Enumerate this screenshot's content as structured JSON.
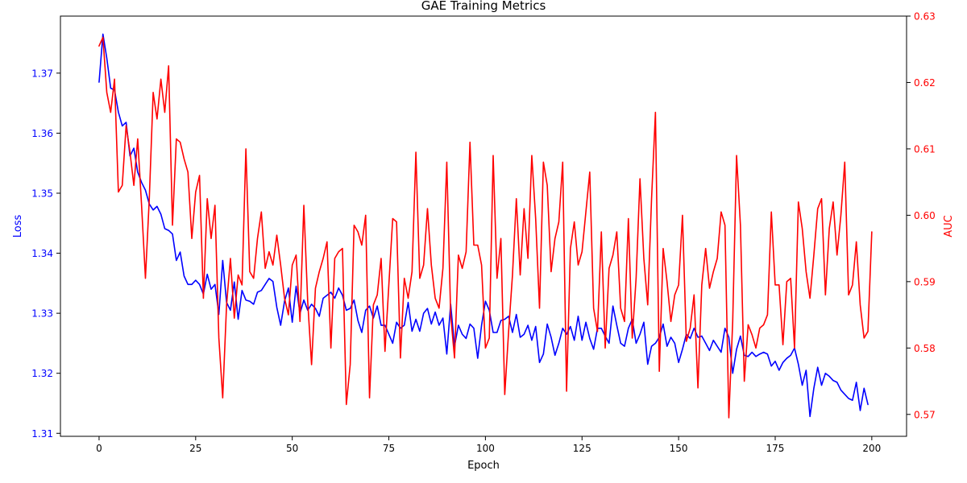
{
  "chart_data": {
    "type": "line",
    "title": "GAE Training Metrics",
    "xlabel": "Epoch",
    "ylabel_left": "Loss",
    "ylabel_right": "AUC",
    "xlim": [
      -10,
      209
    ],
    "ylim_left": [
      1.3095,
      1.3795
    ],
    "ylim_right": [
      0.5667,
      0.63
    ],
    "x_ticks": [
      0,
      25,
      50,
      75,
      100,
      125,
      150,
      175,
      200
    ],
    "y_left_ticks": [
      1.31,
      1.32,
      1.33,
      1.34,
      1.35,
      1.36,
      1.37
    ],
    "y_right_ticks": [
      0.57,
      0.58,
      0.59,
      0.6,
      0.61,
      0.62,
      0.63
    ],
    "grid": false,
    "colors": {
      "loss": "#0000ff",
      "auc": "#ff0000"
    },
    "series": [
      {
        "axis": "left",
        "color": "#0000ff",
        "values": [
          1.3685,
          1.3765,
          1.3725,
          1.3675,
          1.3672,
          1.3635,
          1.3612,
          1.3618,
          1.3562,
          1.3575,
          1.3535,
          1.3518,
          1.3505,
          1.3482,
          1.3472,
          1.3478,
          1.3465,
          1.3441,
          1.3438,
          1.3432,
          1.3388,
          1.3402,
          1.3362,
          1.3348,
          1.3348,
          1.3355,
          1.3348,
          1.3332,
          1.3365,
          1.334,
          1.3348,
          1.3298,
          1.3388,
          1.3318,
          1.3305,
          1.3352,
          1.329,
          1.3338,
          1.3322,
          1.332,
          1.3315,
          1.3335,
          1.3338,
          1.3348,
          1.3358,
          1.3353,
          1.331,
          1.328,
          1.332,
          1.3342,
          1.3285,
          1.3345,
          1.33,
          1.3322,
          1.3305,
          1.3315,
          1.3308,
          1.3295,
          1.3325,
          1.333,
          1.3335,
          1.3325,
          1.3342,
          1.333,
          1.3305,
          1.3308,
          1.3322,
          1.3288,
          1.3268,
          1.3305,
          1.3312,
          1.3292,
          1.3312,
          1.328,
          1.328,
          1.3265,
          1.325,
          1.3285,
          1.3275,
          1.328,
          1.3318,
          1.327,
          1.329,
          1.327,
          1.33,
          1.3308,
          1.3282,
          1.3302,
          1.328,
          1.3292,
          1.3232,
          1.3315,
          1.3245,
          1.328,
          1.3265,
          1.3258,
          1.3282,
          1.3275,
          1.3225,
          1.328,
          1.332,
          1.3305,
          1.3268,
          1.3268,
          1.3288,
          1.329,
          1.3295,
          1.3268,
          1.3298,
          1.326,
          1.3265,
          1.328,
          1.3255,
          1.3278,
          1.3218,
          1.3232,
          1.3282,
          1.326,
          1.323,
          1.325,
          1.3275,
          1.3265,
          1.3278,
          1.3255,
          1.3295,
          1.3255,
          1.3285,
          1.3258,
          1.324,
          1.3275,
          1.3275,
          1.3262,
          1.325,
          1.3312,
          1.328,
          1.325,
          1.3245,
          1.3275,
          1.329,
          1.325,
          1.3265,
          1.3285,
          1.3215,
          1.3245,
          1.325,
          1.326,
          1.3282,
          1.3245,
          1.326,
          1.325,
          1.3218,
          1.324,
          1.3265,
          1.3258,
          1.3275,
          1.326,
          1.3262,
          1.325,
          1.3238,
          1.3255,
          1.3245,
          1.3235,
          1.3275,
          1.326,
          1.32,
          1.324,
          1.3262,
          1.323,
          1.3228,
          1.3235,
          1.3228,
          1.3232,
          1.3235,
          1.3232,
          1.3212,
          1.322,
          1.3205,
          1.3218,
          1.3225,
          1.323,
          1.3242,
          1.3215,
          1.318,
          1.3205,
          1.3128,
          1.3175,
          1.321,
          1.318,
          1.32,
          1.3195,
          1.3188,
          1.3185,
          1.3172,
          1.3165,
          1.3158,
          1.3155,
          1.3185,
          1.3138,
          1.3175,
          1.3148
        ]
      },
      {
        "axis": "right",
        "color": "#ff0000",
        "values": [
          0.6255,
          0.6268,
          0.6185,
          0.6155,
          0.6205,
          0.6035,
          0.6045,
          0.6135,
          0.6095,
          0.6045,
          0.6115,
          0.6015,
          0.5905,
          0.6025,
          0.6185,
          0.6145,
          0.6205,
          0.6155,
          0.6225,
          0.5985,
          0.6115,
          0.611,
          0.6085,
          0.6065,
          0.5965,
          0.6035,
          0.606,
          0.5875,
          0.6025,
          0.5965,
          0.6015,
          0.5815,
          0.5725,
          0.5865,
          0.5935,
          0.5845,
          0.591,
          0.5895,
          0.61,
          0.5915,
          0.5905,
          0.5965,
          0.6005,
          0.592,
          0.5945,
          0.5925,
          0.597,
          0.5925,
          0.5875,
          0.585,
          0.5925,
          0.594,
          0.584,
          0.6015,
          0.587,
          0.5775,
          0.589,
          0.5915,
          0.5935,
          0.596,
          0.58,
          0.5935,
          0.5945,
          0.595,
          0.5715,
          0.5775,
          0.5985,
          0.5975,
          0.5955,
          0.6,
          0.5725,
          0.5865,
          0.588,
          0.5935,
          0.5795,
          0.5895,
          0.5995,
          0.599,
          0.5785,
          0.5905,
          0.5875,
          0.5915,
          0.6095,
          0.5905,
          0.5925,
          0.601,
          0.5925,
          0.5875,
          0.586,
          0.592,
          0.608,
          0.585,
          0.5785,
          0.594,
          0.592,
          0.5945,
          0.611,
          0.5955,
          0.5955,
          0.5925,
          0.58,
          0.5815,
          0.609,
          0.5905,
          0.5965,
          0.573,
          0.5825,
          0.591,
          0.6025,
          0.591,
          0.601,
          0.5935,
          0.609,
          0.5995,
          0.586,
          0.608,
          0.6045,
          0.5915,
          0.5965,
          0.599,
          0.608,
          0.5735,
          0.595,
          0.599,
          0.5925,
          0.5945,
          0.6005,
          0.6065,
          0.586,
          0.5825,
          0.5975,
          0.58,
          0.592,
          0.594,
          0.5975,
          0.586,
          0.584,
          0.5995,
          0.5815,
          0.5905,
          0.6055,
          0.5935,
          0.5865,
          0.6025,
          0.6155,
          0.5765,
          0.595,
          0.59,
          0.584,
          0.588,
          0.5895,
          0.6,
          0.581,
          0.583,
          0.588,
          0.574,
          0.5895,
          0.595,
          0.589,
          0.5915,
          0.5935,
          0.6005,
          0.5985,
          0.5695,
          0.584,
          0.609,
          0.5985,
          0.575,
          0.5835,
          0.582,
          0.58,
          0.583,
          0.5835,
          0.585,
          0.6005,
          0.5895,
          0.5895,
          0.5805,
          0.59,
          0.5905,
          0.58,
          0.602,
          0.598,
          0.5915,
          0.5875,
          0.594,
          0.601,
          0.6025,
          0.588,
          0.598,
          0.602,
          0.594,
          0.6,
          0.608,
          0.588,
          0.5895,
          0.596,
          0.5865,
          0.5815,
          0.5825,
          0.5975
        ]
      }
    ]
  }
}
